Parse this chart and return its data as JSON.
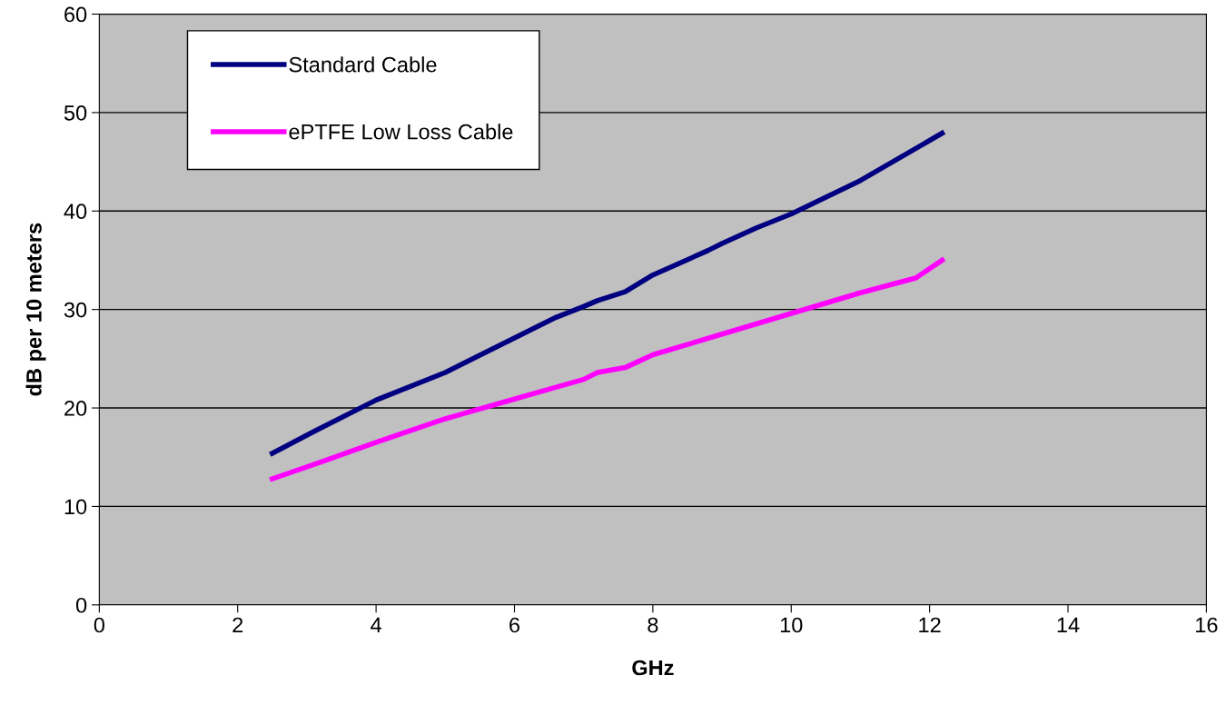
{
  "chart_data": {
    "type": "line",
    "xlabel": "GHz",
    "ylabel": "dB per 10 meters",
    "xlim": [
      0,
      16
    ],
    "xticks": [
      0,
      2,
      4,
      6,
      8,
      10,
      12,
      14,
      16
    ],
    "ylim": [
      0,
      60
    ],
    "yticks": [
      0,
      10,
      20,
      30,
      40,
      50,
      60
    ],
    "grid": "y",
    "legend": "top left",
    "marker": "none",
    "line_style": "solid",
    "series": [
      {
        "name": "Standard Cable",
        "color": "#000080",
        "x": [
          2.5,
          3.1,
          4,
          5,
          5.4,
          6,
          6.6,
          7,
          7.2,
          7.6,
          8,
          8.8,
          9,
          9.5,
          10,
          11,
          12.18
        ],
        "values": [
          15.4,
          17.6,
          20.8,
          23.6,
          25,
          27.1,
          29.2,
          30.3,
          30.9,
          31.8,
          33.5,
          36,
          36.7,
          38.3,
          39.7,
          43.1,
          47.9
        ]
      },
      {
        "name": "ePTFE Low Loss Cable",
        "color": "#ff00ff",
        "x": [
          2.5,
          3.2,
          4,
          5,
          6,
          6.5,
          7,
          7.2,
          7.6,
          8,
          9,
          10,
          11,
          11.8,
          12.18
        ],
        "values": [
          12.8,
          14.5,
          16.5,
          18.9,
          20.9,
          21.9,
          22.9,
          23.6,
          24.1,
          25.4,
          27.5,
          29.6,
          31.7,
          33.2,
          35
        ]
      }
    ]
  }
}
